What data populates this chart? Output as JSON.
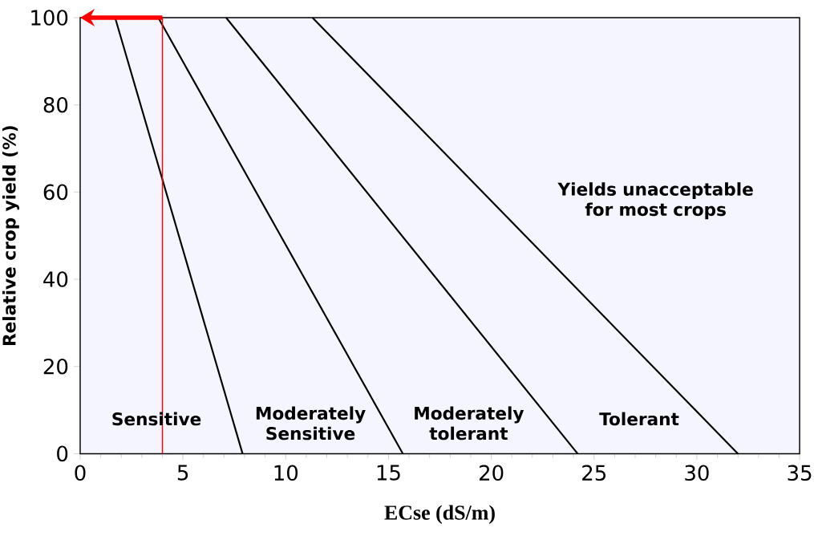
{
  "chart_data": {
    "type": "line",
    "xlabel": "ECse (dS/m)",
    "ylabel": "Relative crop yield (%)",
    "xlim": [
      0,
      35
    ],
    "ylim": [
      0,
      100
    ],
    "xticks": [
      0,
      5,
      10,
      15,
      20,
      25,
      30,
      35
    ],
    "yticks": [
      0,
      20,
      40,
      60,
      80,
      100
    ],
    "series": [
      {
        "color": "#000000",
        "x": [
          1.7,
          7.9
        ],
        "values": [
          100,
          0
        ]
      },
      {
        "color": "#000000",
        "x": [
          3.8,
          15.7
        ],
        "values": [
          100,
          0
        ]
      },
      {
        "color": "#000000",
        "x": [
          7.1,
          24.2
        ],
        "values": [
          100,
          0
        ]
      },
      {
        "color": "#000000",
        "x": [
          11.3,
          32.0
        ],
        "values": [
          100,
          0
        ]
      }
    ],
    "ref_lines": [
      {
        "axis": "x",
        "value": 4,
        "color": "#ff0000"
      }
    ],
    "annotations": [
      "Sensitive",
      "Moderately Sensitive",
      "Moderately tolerant",
      "Tolerant",
      "Yields unacceptable for most crops"
    ],
    "grid": false,
    "marker": "none",
    "line_style": "solid"
  }
}
